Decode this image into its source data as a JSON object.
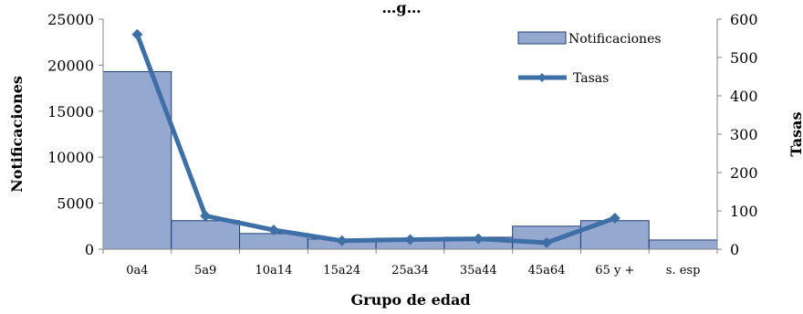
{
  "chart_data": {
    "type": "bar",
    "title": "…g…",
    "categories": [
      "0a4",
      "5a9",
      "10a14",
      "15a24",
      "25a34",
      "35a44",
      "45a64",
      "65 y +",
      "s. esp"
    ],
    "series": [
      {
        "name": "Notificaciones",
        "type": "bar",
        "axis": "left",
        "values": [
          19300,
          3100,
          1700,
          1100,
          1200,
          1300,
          2500,
          3100,
          1000
        ]
      },
      {
        "name": "Tasas",
        "type": "line",
        "axis": "right",
        "values": [
          560,
          87,
          50,
          22,
          25,
          27,
          17,
          81,
          null
        ]
      }
    ],
    "xlabel": "Grupo de edad",
    "ylabel": "Notificaciones",
    "y2label": "Tasas",
    "ylim": [
      0,
      25000
    ],
    "y2lim": [
      0,
      600
    ],
    "yticks": [
      0,
      5000,
      10000,
      15000,
      20000,
      25000
    ],
    "y2ticks": [
      0,
      100,
      200,
      300,
      400,
      500,
      600
    ],
    "grid": false,
    "legend_position": "top-right",
    "colors": {
      "bar_fill": "#95a8d0",
      "bar_stroke": "#1f3f73",
      "line": "#3e6fa6",
      "axis": "#868686"
    }
  }
}
